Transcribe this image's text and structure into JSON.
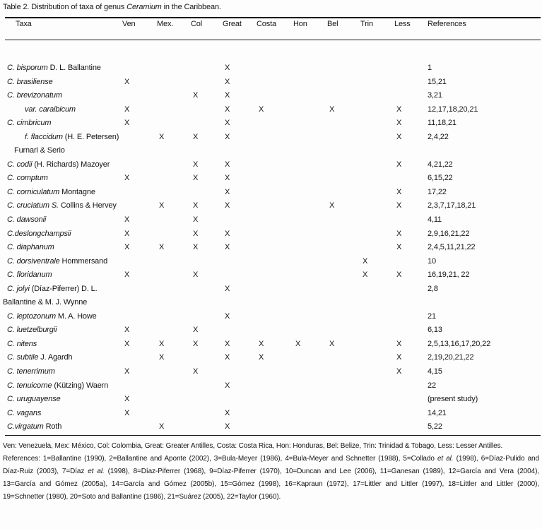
{
  "caption": {
    "segments": [
      {
        "t": "Table 2. Distribution of taxa of genus ",
        "i": false
      },
      {
        "t": "Ceramium",
        "i": true
      },
      {
        "t": " in the Caribbean.",
        "i": false
      }
    ]
  },
  "table": {
    "columns": [
      "Taxa",
      "Ven",
      "Mex.",
      "Col",
      "Great",
      "Costa",
      "Hon",
      "Bel",
      "Trin",
      "Less",
      "References"
    ],
    "region_keys": [
      "ven",
      "mex",
      "col",
      "great",
      "costa",
      "hon",
      "bel",
      "trin",
      "less"
    ],
    "mark_symbol": "X",
    "rows": [
      {
        "indent": 0,
        "italic": "C. bisporum",
        "roman": "D. L. Ballantine",
        "marks": [
          "",
          "",
          "",
          "X",
          "",
          "",
          "",
          "",
          ""
        ],
        "ref": "1"
      },
      {
        "indent": 0,
        "italic": "C. brasiliense",
        "roman": "",
        "marks": [
          "X",
          "",
          "",
          "X",
          "",
          "",
          "",
          "",
          ""
        ],
        "ref": "15,21"
      },
      {
        "indent": 0,
        "italic": "C. brevizonatum",
        "roman": "",
        "marks": [
          "",
          "",
          "X",
          "X",
          "",
          "",
          "",
          "",
          ""
        ],
        "ref": "3,21"
      },
      {
        "indent": 1,
        "italic": "var. caraibicum",
        "roman": "",
        "marks": [
          "X",
          "",
          "",
          "X",
          "X",
          "",
          "X",
          "",
          "X"
        ],
        "ref": "12,17,18,20,21"
      },
      {
        "indent": 0,
        "italic": "C. cimbricum",
        "roman": "",
        "marks": [
          "X",
          "",
          "",
          "X",
          "",
          "",
          "",
          "",
          "X"
        ],
        "ref": "11,18,21"
      },
      {
        "indent": 1,
        "italic": "f. flaccidum",
        "roman": "(H. E. Petersen)",
        "marks": [
          "",
          "X",
          "X",
          "X",
          "",
          "",
          "",
          "",
          "X"
        ],
        "ref": "2,4,22"
      },
      {
        "indent": 2,
        "italic": "",
        "roman": "Furnari & Serio",
        "marks": [
          "",
          "",
          "",
          "",
          "",
          "",
          "",
          "",
          ""
        ],
        "ref": ""
      },
      {
        "indent": 0,
        "italic": "C. codii",
        "roman": "(H. Richards) Mazoyer",
        "marks": [
          "",
          "",
          "X",
          "X",
          "",
          "",
          "",
          "",
          "X"
        ],
        "ref": "4,21,22"
      },
      {
        "indent": 0,
        "italic": "C. comptum",
        "roman": "",
        "marks": [
          "X",
          "",
          "X",
          "X",
          "",
          "",
          "",
          "",
          ""
        ],
        "ref": "6,15,22"
      },
      {
        "indent": 0,
        "italic": "C. corniculatum",
        "roman": "Montagne",
        "marks": [
          "",
          "",
          "",
          "X",
          "",
          "",
          "",
          "",
          "X"
        ],
        "ref": "17,22"
      },
      {
        "indent": 0,
        "italic": "C. cruciatum S.",
        "roman": "Collins & Hervey",
        "marks": [
          "",
          "X",
          "X",
          "X",
          "",
          "",
          "X",
          "",
          "X"
        ],
        "ref": "2,3,7,17,18,21"
      },
      {
        "indent": 0,
        "italic": "C. dawsonii",
        "roman": "",
        "marks": [
          "X",
          "",
          "X",
          "",
          "",
          "",
          "",
          "",
          ""
        ],
        "ref": "4,11"
      },
      {
        "indent": 0,
        "italic": "C.deslongchampsii",
        "roman": "",
        "marks": [
          "X",
          "",
          "X",
          "X",
          "",
          "",
          "",
          "",
          "X"
        ],
        "ref": "2,9,16,21,22"
      },
      {
        "indent": 0,
        "italic": "C. diaphanum",
        "roman": "",
        "marks": [
          "X",
          "X",
          "X",
          "X",
          "",
          "",
          "",
          "",
          "X"
        ],
        "ref": "2,4,5,11,21,22"
      },
      {
        "indent": 0,
        "italic": "C. dorsiventrale",
        "roman": "Hommersand",
        "marks": [
          "",
          "",
          "",
          "",
          "",
          "",
          "",
          "X",
          ""
        ],
        "ref": "10"
      },
      {
        "indent": 0,
        "italic": "C. floridanum",
        "roman": "",
        "marks": [
          "X",
          "",
          "X",
          "",
          "",
          "",
          "",
          "X",
          "X"
        ],
        "ref": "16,19,21, 22"
      },
      {
        "indent": 0,
        "italic": "C. jolyi",
        "roman": "(Díaz-Piferrer) D. L.",
        "marks": [
          "",
          "",
          "",
          "X",
          "",
          "",
          "",
          "",
          ""
        ],
        "ref": "2,8"
      },
      {
        "indent": 3,
        "italic": "",
        "roman": "Ballantine & M. J. Wynne",
        "marks": [
          "",
          "",
          "",
          "",
          "",
          "",
          "",
          "",
          ""
        ],
        "ref": ""
      },
      {
        "indent": 0,
        "italic": "C. leptozonum",
        "roman": "M. A. Howe",
        "marks": [
          "",
          "",
          "",
          "X",
          "",
          "",
          "",
          "",
          ""
        ],
        "ref": "21"
      },
      {
        "indent": 0,
        "italic": "C. luetzelburgii",
        "roman": "",
        "marks": [
          "X",
          "",
          "X",
          "",
          "",
          "",
          "",
          "",
          ""
        ],
        "ref": "6,13"
      },
      {
        "indent": 0,
        "italic": "C. nitens",
        "roman": "",
        "marks": [
          "X",
          "X",
          "X",
          "X",
          "X",
          "X",
          "X",
          "",
          "X"
        ],
        "ref": "2,5,13,16,17,20,22"
      },
      {
        "indent": 0,
        "italic": "C. subtile",
        "roman": "J. Agardh",
        "marks": [
          "",
          "X",
          "",
          "X",
          "X",
          "",
          "",
          "",
          "X"
        ],
        "ref": "2,19,20,21,22"
      },
      {
        "indent": 0,
        "italic": "C. tenerrimum",
        "roman": "",
        "marks": [
          "X",
          "",
          "X",
          "",
          "",
          "",
          "",
          "",
          "X"
        ],
        "ref": "4,15"
      },
      {
        "indent": 0,
        "italic": "C. tenuicorne",
        "roman": "(Kützing) Waern",
        "marks": [
          "",
          "",
          "",
          "X",
          "",
          "",
          "",
          "",
          ""
        ],
        "ref": "22"
      },
      {
        "indent": 0,
        "italic": "C. uruguayense",
        "roman": "",
        "marks": [
          "X",
          "",
          "",
          "",
          "",
          "",
          "",
          "",
          ""
        ],
        "ref": "(present study)"
      },
      {
        "indent": 0,
        "italic": "C. vagans",
        "roman": "",
        "marks": [
          "X",
          "",
          "",
          "X",
          "",
          "",
          "",
          "",
          ""
        ],
        "ref": "14,21"
      },
      {
        "indent": 0,
        "italic": "C.virgatum",
        "roman": "Roth",
        "marks": [
          "",
          "X",
          "",
          "X",
          "",
          "",
          "",
          "",
          ""
        ],
        "ref": "5,22"
      }
    ]
  },
  "footnotes": {
    "abbreviations": "Ven: Venezuela, Mex: México, Col: Colombia, Great: Greater Antilles, Costa: Costa Rica, Hon: Honduras, Bel: Belize, Trin: Trinidad & Tobago, Less: Lesser Antilles.",
    "references_segments": [
      {
        "t": "References: 1=Ballantine (1990), 2=Ballantine and Aponte (2002), 3=Bula-Meyer (1986), 4=Bula-Meyer and Schnetter (1988), 5=Collado ",
        "i": false
      },
      {
        "t": "et al.",
        "i": true
      },
      {
        "t": " (1998), 6=Díaz-Pulido and Díaz-Ruiz (2003), 7=Díaz ",
        "i": false
      },
      {
        "t": "et al.",
        "i": true
      },
      {
        "t": " (1998), 8=Díaz-Piferrer (1968), 9=Díaz-Piferrer (1970), 10=Duncan and Lee (2006), 11=Ganesan (1989), 12=García and Vera (2004), 13=García and Gómez (2005a), 14=García and Gómez (2005b), 15=Gómez (1998), 16=Kapraun (1972), 17=Littler and Littler (1997), 18=Littler and Littler (2000), 19=Schnetter (1980), 20=Soto and Ballantine (1986), 21=Suárez (2005), 22=Taylor (1960).",
        "i": false
      }
    ]
  }
}
